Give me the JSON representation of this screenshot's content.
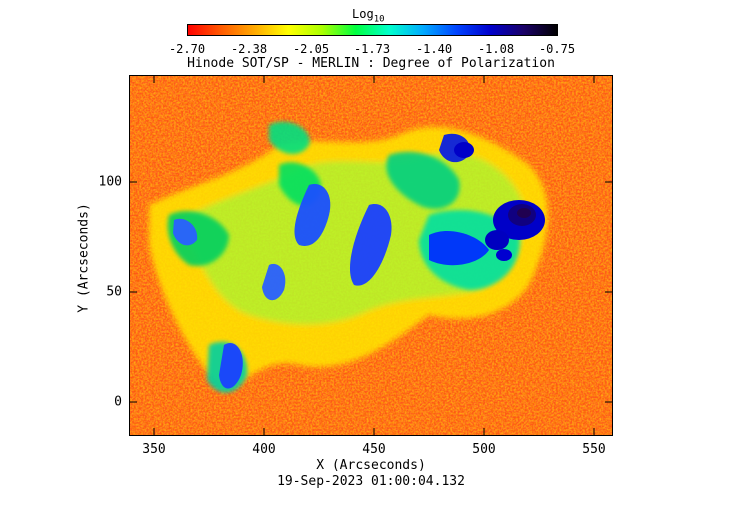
{
  "colorbar": {
    "title_main": "Log",
    "title_sub": "10",
    "tick_labels": [
      "-2.70",
      "-2.38",
      "-2.05",
      "-1.73",
      "-1.40",
      "-1.08",
      "-0.75"
    ],
    "colors": [
      "#ff0000",
      "#ff5a00",
      "#ffaa00",
      "#ffff00",
      "#aaff00",
      "#00ff40",
      "#00ffcc",
      "#00aaff",
      "#0044ff",
      "#0000cc",
      "#1a0066",
      "#000000"
    ]
  },
  "plot": {
    "title": "Hinode SOT/SP - MERLIN : Degree of Polarization",
    "xlabel": "X (Arcseconds)",
    "ylabel": "Y (Arcseconds)",
    "x_ticks": [
      "350",
      "400",
      "450",
      "500",
      "550"
    ],
    "y_ticks": [
      "0",
      "50",
      "100"
    ],
    "timestamp": "19-Sep-2023 01:00:04.132"
  },
  "image_description": {
    "type": "solar polarization map",
    "background_color": "#ff5a1f",
    "active_region_color": "#0000c8"
  }
}
